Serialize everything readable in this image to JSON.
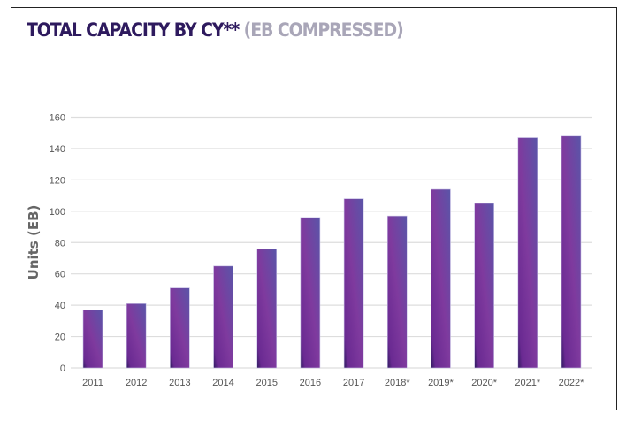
{
  "chart_data": {
    "type": "bar",
    "title": "TOTAL CAPACITY BY CY**",
    "subtitle": "(EB COMPRESSED)",
    "xlabel": "",
    "ylabel": "Units (EB)",
    "categories": [
      "2011",
      "2012",
      "2013",
      "2014",
      "2015",
      "2016",
      "2017",
      "2018*",
      "2019*",
      "2020*",
      "2021*",
      "2022*"
    ],
    "values": [
      37,
      41,
      51,
      65,
      76,
      96,
      108,
      97,
      114,
      105,
      147,
      148
    ],
    "ylim": [
      0,
      160
    ],
    "yticks": [
      0,
      20,
      40,
      60,
      80,
      100,
      120,
      140,
      160
    ],
    "grid": true,
    "legend": "none",
    "colors": {
      "bar_dark": "#2e1a5e",
      "bar_mid": "#7f3a9e",
      "bar_light": "#5a55a8",
      "title": "#2e1a5e",
      "subtitle": "#a9a6b8"
    }
  }
}
